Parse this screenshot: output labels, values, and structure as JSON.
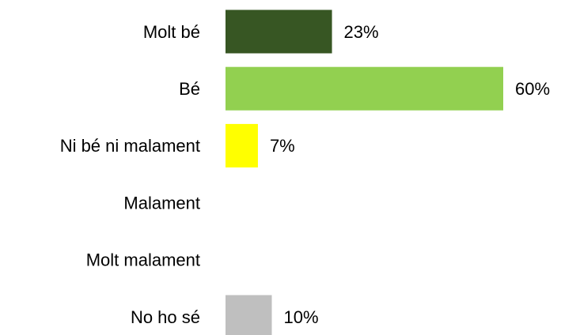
{
  "chart_data": {
    "type": "bar",
    "orientation": "horizontal",
    "categories": [
      "Molt bé",
      "Bé",
      "Ni bé ni malament",
      "Malament",
      "Molt malament",
      "No ho sé"
    ],
    "values": [
      23,
      60,
      7,
      null,
      null,
      10
    ],
    "value_labels": [
      "23%",
      "60%",
      "7%",
      null,
      null,
      "10%"
    ],
    "colors": [
      "#375623",
      "#92d050",
      "#ffff00",
      null,
      null,
      "#bfbfbf"
    ]
  }
}
